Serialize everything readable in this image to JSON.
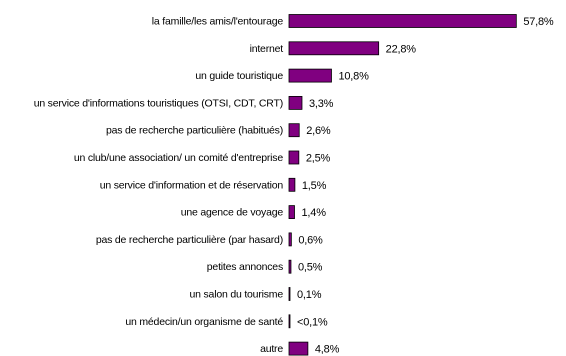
{
  "chart_data": {
    "type": "bar",
    "orientation": "horizontal",
    "title": "",
    "xlabel": "",
    "ylabel": "",
    "grid": false,
    "legend": "none",
    "bar_color": "#800080",
    "categories": [
      "la famille/les amis/l'entourage",
      "internet",
      "un guide touristique",
      "un service d'informations touristiques (OTSI, CDT, CRT)",
      "pas de recherche particulière (habitués)",
      "un club/une association/ un comité d'entreprise",
      "un service d'information et de réservation",
      "une agence de voyage",
      "pas de recherche particulière (par hasard)",
      "petites annonces",
      "un salon du tourisme",
      "un médecin/un organisme de santé",
      "autre"
    ],
    "values": [
      57.8,
      22.8,
      10.8,
      3.3,
      2.6,
      2.5,
      1.5,
      1.4,
      0.6,
      0.5,
      0.1,
      0.05,
      4.8
    ],
    "value_labels": [
      "57,8%",
      "22,8%",
      "10,8%",
      "3,3%",
      "2,6%",
      "2,5%",
      "1,5%",
      "1,4%",
      "0,6%",
      "0,5%",
      "0,1%",
      "<0,1%",
      "4,8%"
    ],
    "xlim": [
      0,
      59.5
    ]
  }
}
